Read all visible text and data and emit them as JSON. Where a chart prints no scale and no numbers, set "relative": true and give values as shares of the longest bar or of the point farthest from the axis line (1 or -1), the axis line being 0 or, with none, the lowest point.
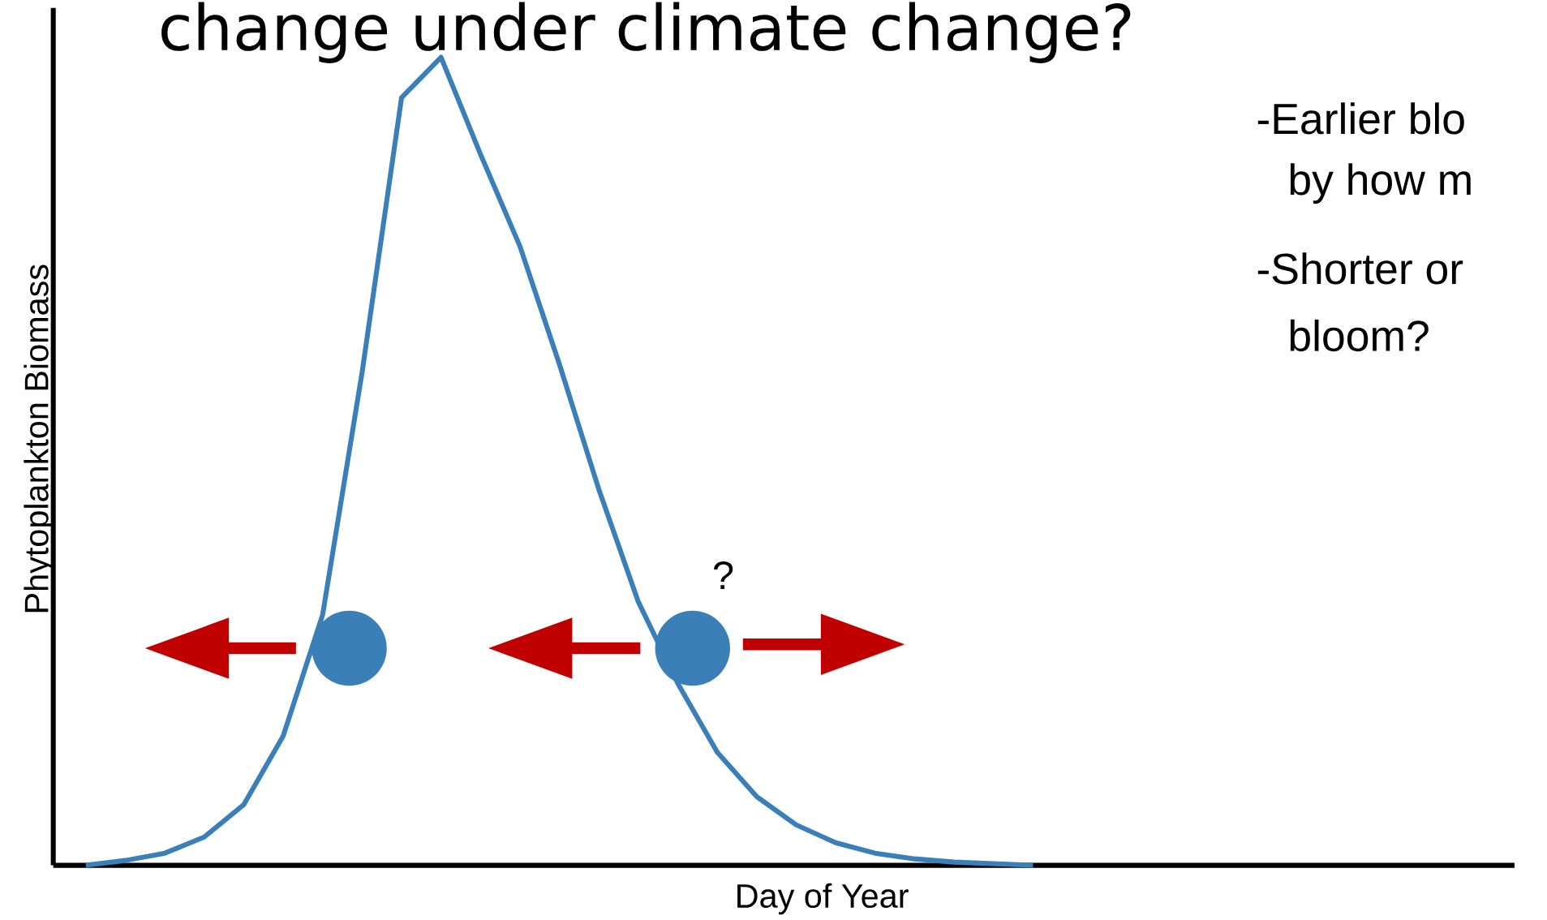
{
  "chart_data": {
    "type": "line",
    "relative": true,
    "title": "change under climate change?",
    "xlabel": "Day of Year",
    "ylabel": "Phytoplankton Biomass",
    "marker": "none",
    "categories": [
      null,
      null,
      null,
      null,
      null,
      null,
      null,
      null,
      null,
      null,
      null,
      null,
      null,
      null,
      null,
      null,
      null,
      null,
      null,
      null,
      null,
      null,
      null,
      null,
      null,
      null,
      null,
      null,
      null,
      null,
      null,
      null,
      null,
      null,
      null,
      null,
      null
    ],
    "series": [
      {
        "color": "#3a7fb8",
        "values": [
          0,
          0.006,
          0.015,
          0.035,
          0.075,
          0.16,
          0.31,
          0.61,
          0.95,
          1,
          0.88,
          0.766,
          0.62,
          0.465,
          0.326,
          0.225,
          0.14,
          0.085,
          0.05,
          0.028,
          0.015,
          0.008,
          0.004,
          0.002,
          0,
          null,
          null,
          null,
          null,
          null,
          null,
          null,
          null,
          null,
          null,
          null,
          null
        ]
      }
    ],
    "annotations": [
      "?",
      "-Earlier blo",
      "by how m",
      "-Shorter or",
      "bloom?"
    ]
  }
}
